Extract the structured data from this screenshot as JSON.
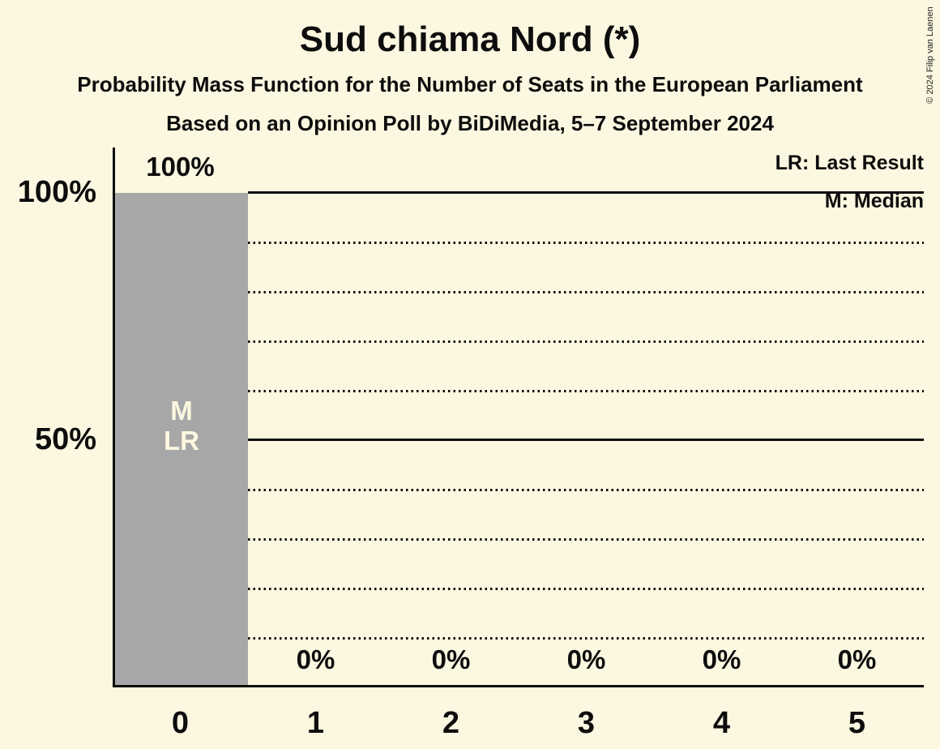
{
  "title": "Sud chiama Nord (*)",
  "subtitle": "Probability Mass Function for the Number of Seats in the European Parliament",
  "poll_line": "Based on an Opinion Poll by BiDiMedia, 5–7 September 2024",
  "copyright": "© 2024 Filip van Laenen",
  "legend": {
    "lr": "LR: Last Result",
    "m": "M: Median"
  },
  "bar_annotations": {
    "median": "M",
    "last_result": "LR"
  },
  "colors": {
    "background": "#FCF7E0",
    "bar": "#A7A7A7",
    "text": "#0D0D0D",
    "bar_label": "#FCF7E0"
  },
  "chart_data": {
    "type": "bar",
    "title": "Sud chiama Nord (*)",
    "subtitle": "Probability Mass Function for the Number of Seats in the European Parliament",
    "source_line": "Based on an Opinion Poll by BiDiMedia, 5–7 September 2024",
    "categories": [
      "0",
      "1",
      "2",
      "3",
      "4",
      "5"
    ],
    "values": [
      100,
      0,
      0,
      0,
      0,
      0
    ],
    "value_labels": [
      "100%",
      "0%",
      "0%",
      "0%",
      "0%",
      "0%"
    ],
    "xlabel": "",
    "ylabel": "",
    "ylim": [
      0,
      100
    ],
    "y_ticks": [
      "100%",
      "50%"
    ],
    "y_tick_values": [
      100,
      50
    ],
    "gridlines": "dotted horizontal every 10%, solid at 50% and 100%",
    "legend_position": "top-right",
    "median_category": "0",
    "last_result_category": "0"
  }
}
